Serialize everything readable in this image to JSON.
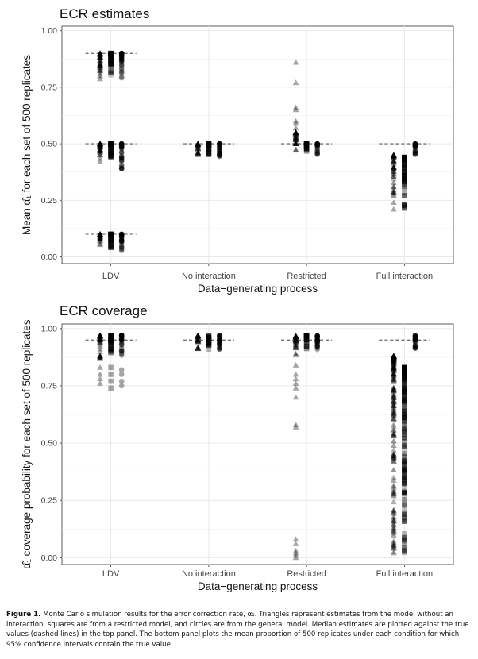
{
  "chart_data": [
    {
      "type": "scatter",
      "title": "ECR estimates",
      "xlabel": "Data−generating process",
      "ylabel_prefix": "Mean ",
      "ylabel_symbol": "α̂₁",
      "ylabel_suffix": " for each set of 500 replicates",
      "categories": [
        "LDV",
        "No interaction",
        "Restricted",
        "Full interaction"
      ],
      "ylim": [
        -0.03,
        1.02
      ],
      "yticks": [
        0.0,
        0.25,
        0.5,
        0.75,
        1.0
      ],
      "ytick_labels": [
        "0.00",
        "0.25",
        "0.50",
        "0.75",
        "1.00"
      ],
      "grid": true,
      "series": [
        {
          "marker": "triangle",
          "offset": -0.11
        },
        {
          "marker": "square",
          "offset": 0.0
        },
        {
          "marker": "circle",
          "offset": 0.11
        }
      ],
      "groups": [
        {
          "category": "LDV",
          "series": 0,
          "clusters": [
            [
              0.78,
              0.9
            ],
            [
              0.42,
              0.5
            ],
            [
              0.05,
              0.1
            ]
          ],
          "median": [
            0.9,
            0.5,
            0.1
          ]
        },
        {
          "category": "LDV",
          "series": 1,
          "clusters": [
            [
              0.8,
              0.9
            ],
            [
              0.41,
              0.5
            ],
            [
              0.04,
              0.1
            ]
          ],
          "median": [
            0.9,
            0.5,
            0.1
          ]
        },
        {
          "category": "LDV",
          "series": 2,
          "clusters": [
            [
              0.77,
              0.9
            ],
            [
              0.38,
              0.5
            ],
            [
              0.01,
              0.1
            ]
          ],
          "median": [
            0.9,
            0.5,
            0.1
          ]
        },
        {
          "category": "No interaction",
          "series": 0,
          "clusters": [
            [
              0.45,
              0.5
            ]
          ],
          "median": [
            0.5
          ]
        },
        {
          "category": "No interaction",
          "series": 1,
          "clusters": [
            [
              0.45,
              0.5
            ]
          ],
          "median": [
            0.5
          ]
        },
        {
          "category": "No interaction",
          "series": 2,
          "clusters": [
            [
              0.44,
              0.5
            ]
          ],
          "median": [
            0.5
          ]
        },
        {
          "category": "Restricted",
          "series": 0,
          "clusters": [
            [
              0.45,
              0.55
            ]
          ],
          "extra": [
            0.86,
            0.77,
            0.66,
            0.65,
            0.6,
            0.59,
            0.57
          ],
          "median": [
            0.5
          ]
        },
        {
          "category": "Restricted",
          "series": 1,
          "clusters": [
            [
              0.46,
              0.5
            ]
          ],
          "median": [
            0.5
          ]
        },
        {
          "category": "Restricted",
          "series": 2,
          "clusters": [
            [
              0.45,
              0.5
            ]
          ],
          "median": [
            0.5
          ]
        },
        {
          "category": "Full interaction",
          "series": 0,
          "clusters": [
            [
              0.27,
              0.45
            ]
          ],
          "extra": [
            0.24,
            0.21
          ],
          "median": [
            0.5
          ]
        },
        {
          "category": "Full interaction",
          "series": 1,
          "clusters": [
            [
              0.18,
              0.44
            ]
          ],
          "median": [
            0.5
          ]
        },
        {
          "category": "Full interaction",
          "series": 2,
          "clusters": [
            [
              0.45,
              0.5
            ]
          ],
          "median": [
            0.5
          ]
        }
      ]
    },
    {
      "type": "scatter",
      "title": "ECR coverage",
      "xlabel": "Data−generating process",
      "ylabel_prefix": "",
      "ylabel_symbol": "α̂₁",
      "ylabel_suffix": " coverage probability for each set of 500 replicates",
      "categories": [
        "LDV",
        "No interaction",
        "Restricted",
        "Full interaction"
      ],
      "ylim": [
        -0.03,
        1.02
      ],
      "yticks": [
        0.0,
        0.25,
        0.5,
        0.75,
        1.0
      ],
      "ytick_labels": [
        "0.00",
        "0.25",
        "0.50",
        "0.75",
        "1.00"
      ],
      "grid": true,
      "series": [
        {
          "marker": "triangle",
          "offset": -0.11
        },
        {
          "marker": "square",
          "offset": 0.0
        },
        {
          "marker": "circle",
          "offset": 0.11
        }
      ],
      "groups": [
        {
          "category": "LDV",
          "series": 0,
          "clusters": [
            [
              0.86,
              0.97
            ]
          ],
          "extra": [
            0.83,
            0.8,
            0.78,
            0.76
          ],
          "median": [
            0.95
          ]
        },
        {
          "category": "LDV",
          "series": 1,
          "clusters": [
            [
              0.88,
              0.97
            ]
          ],
          "extra": [
            0.83,
            0.8,
            0.77,
            0.74
          ],
          "median": [
            0.95
          ]
        },
        {
          "category": "LDV",
          "series": 2,
          "clusters": [
            [
              0.87,
              0.97
            ]
          ],
          "extra": [
            0.82,
            0.8,
            0.77,
            0.75
          ],
          "median": [
            0.95
          ]
        },
        {
          "category": "No interaction",
          "series": 0,
          "clusters": [
            [
              0.91,
              0.97
            ]
          ],
          "median": [
            0.95
          ]
        },
        {
          "category": "No interaction",
          "series": 1,
          "clusters": [
            [
              0.91,
              0.97
            ]
          ],
          "median": [
            0.95
          ]
        },
        {
          "category": "No interaction",
          "series": 2,
          "clusters": [
            [
              0.91,
              0.97
            ]
          ],
          "median": [
            0.95
          ]
        },
        {
          "category": "Restricted",
          "series": 0,
          "clusters": [
            [
              0.88,
              0.97
            ]
          ],
          "extra": [
            0.84,
            0.8,
            0.78,
            0.76,
            0.74,
            0.7,
            0.58,
            0.57,
            0.08,
            0.06,
            0.03,
            0.02,
            0.01,
            0.0
          ],
          "median": [
            0.95
          ]
        },
        {
          "category": "Restricted",
          "series": 1,
          "clusters": [
            [
              0.91,
              0.97
            ]
          ],
          "median": [
            0.95
          ]
        },
        {
          "category": "Restricted",
          "series": 2,
          "clusters": [
            [
              0.9,
              0.97
            ]
          ],
          "median": [
            0.95
          ]
        },
        {
          "category": "Full interaction",
          "series": 0,
          "clusters": [
            [
              0.0,
              0.88
            ]
          ],
          "median": [
            0.95
          ]
        },
        {
          "category": "Full interaction",
          "series": 1,
          "clusters": [
            [
              0.0,
              0.83
            ]
          ],
          "median": [
            0.95
          ]
        },
        {
          "category": "Full interaction",
          "series": 2,
          "clusters": [
            [
              0.91,
              0.97
            ]
          ],
          "median": [
            0.95
          ]
        }
      ]
    }
  ],
  "caption": {
    "label": "Figure 1.",
    "text": "Monte Carlo simulation results for the error correction rate, α₁. Triangles represent estimates from the model without an interaction, squares are from a restricted model, and circles are from the general model. Median estimates are plotted against the true values (dashed lines) in the top panel. The bottom panel plots the mean proportion of 500 replicates under each condition for which 95% confidence intervals contain the true value."
  }
}
